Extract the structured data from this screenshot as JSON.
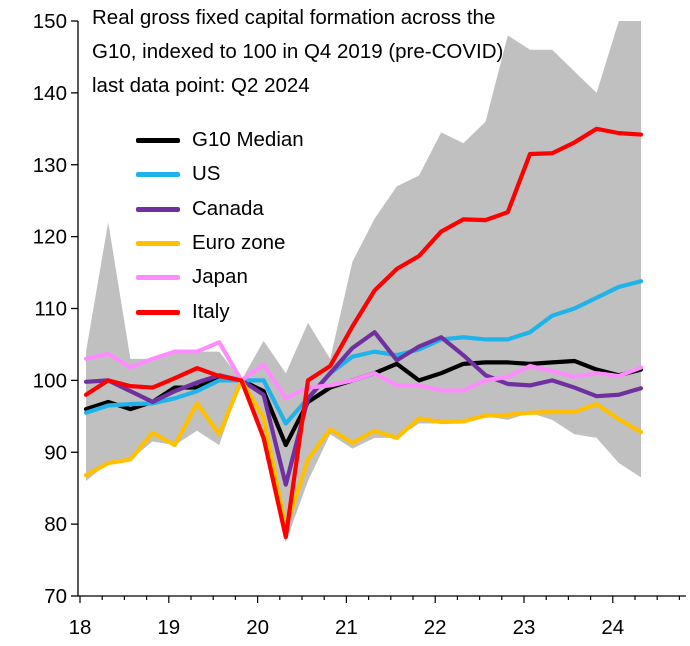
{
  "chart_data": {
    "type": "line",
    "title_lines": [
      "Real gross fixed capital formation across the",
      "G10, indexed to 100 in Q4 2019 (pre-COVID)",
      "last data point: Q2 2024"
    ],
    "xlabel": "",
    "ylabel": "",
    "ylim": [
      70,
      150
    ],
    "yticks": [
      "70",
      "80",
      "90",
      "100",
      "110",
      "120",
      "130",
      "140",
      "150"
    ],
    "xticks": [
      "18",
      "19",
      "20",
      "21",
      "22",
      "23",
      "24"
    ],
    "x": [
      "2018Q1",
      "2018Q2",
      "2018Q3",
      "2018Q4",
      "2019Q1",
      "2019Q2",
      "2019Q3",
      "2019Q4",
      "2020Q1",
      "2020Q2",
      "2020Q3",
      "2020Q4",
      "2021Q1",
      "2021Q2",
      "2021Q3",
      "2021Q4",
      "2022Q1",
      "2022Q2",
      "2022Q3",
      "2022Q4",
      "2023Q1",
      "2023Q2",
      "2023Q3",
      "2023Q4",
      "2024Q1",
      "2024Q2"
    ],
    "range_band": {
      "upper": [
        104,
        122,
        103,
        103,
        104,
        104,
        104,
        100,
        105.5,
        101,
        108,
        103,
        116.5,
        122.5,
        127,
        128.5,
        134.5,
        133,
        136,
        148,
        146,
        146,
        143,
        140,
        150,
        150
      ],
      "lower": [
        86,
        88.5,
        89,
        91.5,
        91,
        93,
        91,
        100,
        91,
        77.5,
        86,
        92.5,
        90.5,
        92,
        92,
        94,
        94,
        94.5,
        95,
        94.5,
        95.5,
        94.5,
        92.5,
        92,
        88.5,
        86.5
      ],
      "color": "#c0c0c0"
    },
    "legend_placement": "upper-left",
    "grid": false,
    "series": [
      {
        "name": "G10 Median",
        "color": "#000000",
        "values": [
          96,
          97,
          96,
          97,
          99,
          99,
          100.5,
          100,
          98.5,
          91,
          97,
          99,
          100,
          101,
          102.3,
          100,
          101,
          102.3,
          102.5,
          102.5,
          102.3,
          102.5,
          102.7,
          101.5,
          100.7,
          101.5
        ]
      },
      {
        "name": "US",
        "color": "#1fb3ea",
        "values": [
          95.5,
          96.5,
          96.7,
          96.8,
          97.5,
          98.5,
          100,
          100,
          100,
          94,
          97.5,
          101,
          103.3,
          104,
          103.5,
          104.3,
          105.7,
          106,
          105.7,
          105.7,
          106.7,
          109,
          110,
          111.5,
          113,
          113.8
        ]
      },
      {
        "name": "Canada",
        "color": "#7030a0",
        "values": [
          99.8,
          100,
          98.5,
          97,
          98.5,
          99.7,
          100.7,
          100,
          98,
          85.5,
          97.5,
          101,
          104.5,
          106.7,
          102.8,
          104.7,
          106,
          103.5,
          100.7,
          99.5,
          99.3,
          100,
          99,
          97.8,
          98,
          98.9
        ]
      },
      {
        "name": "Euro zone",
        "color": "#ffc000",
        "values": [
          86.8,
          88.5,
          89,
          92.7,
          91,
          96.8,
          92.5,
          100,
          94.8,
          79.5,
          89,
          93.2,
          91.3,
          93,
          92,
          94.7,
          94.2,
          94.3,
          95.1,
          95.2,
          95.5,
          95.6,
          95.6,
          96.7,
          94.6,
          92.8
        ]
      },
      {
        "name": "Japan",
        "color": "#ff8cff",
        "values": [
          103,
          103.7,
          101.8,
          103,
          104,
          104,
          105.3,
          100,
          102.2,
          97.5,
          99,
          99.3,
          100,
          101,
          99.3,
          99.3,
          98.6,
          98.6,
          100,
          100.5,
          102,
          101.3,
          100.5,
          101,
          100.6,
          101.8
        ]
      },
      {
        "name": "Italy",
        "color": "#ff0000",
        "values": [
          98,
          100,
          99.2,
          99,
          100.3,
          101.7,
          100.6,
          100,
          92,
          78.2,
          100,
          102,
          107.5,
          112.5,
          115.5,
          117.3,
          120.7,
          122.4,
          122.3,
          123.4,
          131.5,
          131.6,
          133.1,
          135,
          134.4,
          134.2
        ]
      }
    ]
  }
}
